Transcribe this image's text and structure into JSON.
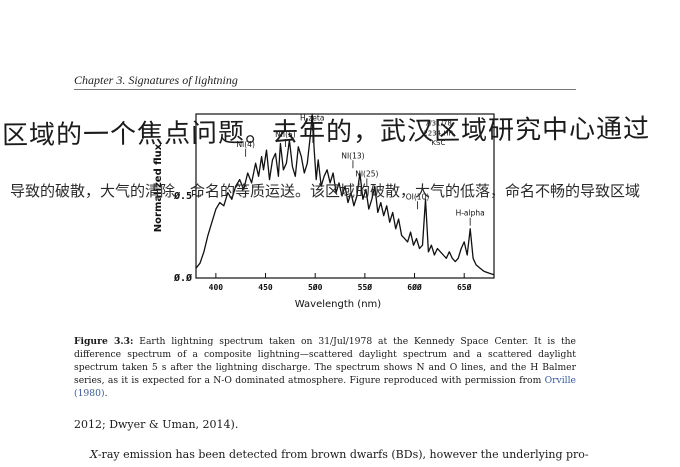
{
  "header": {
    "running_head": "Chapter 3.   Signatures of lightning"
  },
  "handwriting": {
    "line1": "区域的一个焦点问题。去年的，武汉区域研究中心通过",
    "line2": "导致的破散，大气的清除，命名的等质运送。该区域的破散，大气的低落，命名不畅的导致区域"
  },
  "figure": {
    "caption_label": "Figure 3.3:",
    "caption_text": " Earth lightning spectrum taken on 31/Jul/1978 at the Kennedy Space Center.  It is the difference spectrum of a composite lightning—scattered daylight spectrum and a scattered daylight spectrum taken 5 s after the lightning discharge. The spectrum shows N and O lines, and the H Balmer series, as it is expected for a N-O dominated atmosphere. Figure reproduced with permission from ",
    "caption_cite": "Orville (1980)",
    "caption_end": "."
  },
  "chart_data": {
    "type": "line",
    "xlabel": "Wavelength (nm)",
    "ylabel": "Normalized flux",
    "xlim": [
      380,
      680
    ],
    "ylim": [
      0,
      1
    ],
    "xticks": [
      400,
      450,
      500,
      550,
      600,
      650
    ],
    "xtick_labels": [
      "400",
      "450",
      "5Ø0",
      "55Ø",
      "6ØØ",
      "65Ø"
    ],
    "yticks": [
      0,
      0.5
    ],
    "ytick_labels": [
      "Ø.Ø",
      "Ø.5"
    ],
    "grid": false,
    "annotations": [
      {
        "text": "H-zeta",
        "x": 497,
        "y": 0.96
      },
      {
        "text": "NI(4)",
        "x": 430,
        "y": 0.8
      },
      {
        "text": "NII(5)",
        "x": 470,
        "y": 0.86
      },
      {
        "text": "NI(13)",
        "x": 538,
        "y": 0.73
      },
      {
        "text": "NI(25)",
        "x": 552,
        "y": 0.62
      },
      {
        "text": "OI(10)",
        "x": 603,
        "y": 0.48
      },
      {
        "text": "H-alpha",
        "x": 656,
        "y": 0.38
      },
      {
        "text": "7/31/78",
        "x": 624,
        "y": 0.93
      },
      {
        "text": "2234 HR",
        "x": 624,
        "y": 0.87
      },
      {
        "text": "KSC",
        "x": 624,
        "y": 0.81
      }
    ],
    "series": [
      {
        "x": [
          380,
          384,
          388,
          392,
          396,
          400,
          404,
          408,
          412,
          416,
          420,
          424,
          428,
          432,
          436,
          440,
          443,
          446,
          448,
          451,
          454,
          457,
          460,
          463,
          465,
          468,
          471,
          474,
          477,
          480,
          483,
          486,
          489,
          492,
          495,
          497,
          499,
          501,
          503,
          506,
          509,
          512,
          515,
          518,
          521,
          524,
          527,
          530,
          533,
          536,
          539,
          542,
          545,
          548,
          551,
          554,
          557,
          560,
          563,
          566,
          569,
          572,
          575,
          578,
          581,
          584,
          587,
          590,
          593,
          596,
          599,
          602,
          605,
          608,
          611,
          614,
          617,
          620,
          623,
          626,
          629,
          632,
          635,
          638,
          641,
          644,
          647,
          650,
          653,
          656,
          659,
          662,
          666,
          670,
          675,
          680
        ],
        "y": [
          0.06,
          0.09,
          0.16,
          0.26,
          0.34,
          0.42,
          0.46,
          0.44,
          0.52,
          0.48,
          0.56,
          0.6,
          0.54,
          0.64,
          0.58,
          0.7,
          0.62,
          0.74,
          0.66,
          0.78,
          0.6,
          0.72,
          0.76,
          0.62,
          0.82,
          0.66,
          0.7,
          0.84,
          0.68,
          0.62,
          0.8,
          0.74,
          0.64,
          0.7,
          0.86,
          1.0,
          0.78,
          0.6,
          0.72,
          0.56,
          0.62,
          0.66,
          0.58,
          0.64,
          0.52,
          0.58,
          0.5,
          0.56,
          0.46,
          0.52,
          0.44,
          0.5,
          0.64,
          0.48,
          0.54,
          0.42,
          0.48,
          0.56,
          0.4,
          0.46,
          0.38,
          0.44,
          0.34,
          0.4,
          0.3,
          0.36,
          0.26,
          0.24,
          0.22,
          0.28,
          0.2,
          0.24,
          0.18,
          0.2,
          0.48,
          0.16,
          0.2,
          0.14,
          0.18,
          0.16,
          0.14,
          0.12,
          0.16,
          0.12,
          0.1,
          0.12,
          0.18,
          0.22,
          0.14,
          0.3,
          0.12,
          0.08,
          0.06,
          0.04,
          0.03,
          0.02
        ]
      }
    ]
  },
  "body": {
    "line1": "2012; Dwyer & Uman, 2014).",
    "line2_italic": "X",
    "line2_rest": "-ray emission has been detected from brown dwarfs (BDs), however the underlying pro-"
  }
}
